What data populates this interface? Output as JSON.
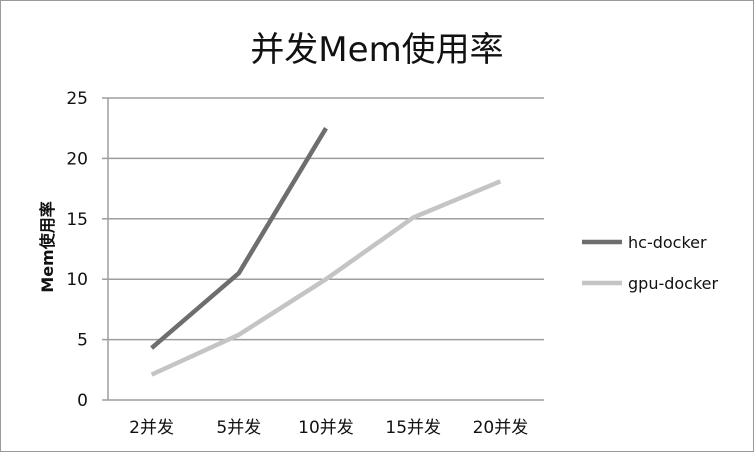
{
  "chart_data": {
    "type": "line",
    "title": "并发Mem使用率",
    "xlabel": "",
    "ylabel": "Mem使用率",
    "categories": [
      "2并发",
      "5并发",
      "10并发",
      "15并发",
      "20并发"
    ],
    "ylim": [
      0,
      25
    ],
    "yticks": [
      "0",
      "5",
      "10",
      "15",
      "20",
      "25"
    ],
    "grid": true,
    "legend_position": "right",
    "series": [
      {
        "name": "hc-docker",
        "color": "#6e6e6e",
        "values": [
          4.3,
          10.5,
          22.5,
          null,
          null
        ]
      },
      {
        "name": "gpu-docker",
        "color": "#c4c4c4",
        "values": [
          2.1,
          5.4,
          10.0,
          15.1,
          18.1
        ]
      }
    ]
  }
}
